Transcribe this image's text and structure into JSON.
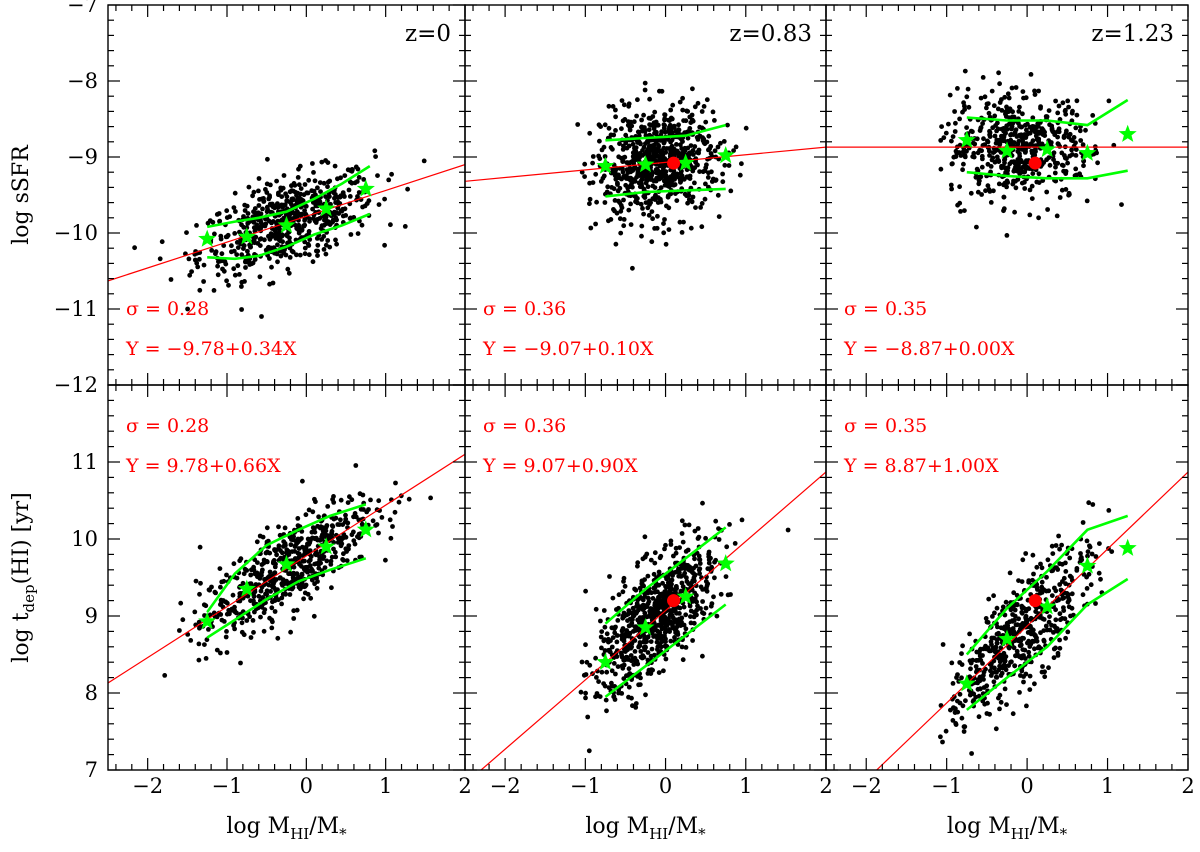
{
  "colors": {
    "points": "#000000",
    "fit_line": "#ff0000",
    "annotation": "#ff0000",
    "median": "#00ff00",
    "percentile": "#00ff00",
    "highlight": "#ff0000"
  },
  "chart_data": [
    {
      "type": "scatter",
      "row": 0,
      "col": 0,
      "label": "z=0",
      "xlim": [
        -2.5,
        2
      ],
      "ylim": [
        -12,
        -7
      ],
      "xticks": [],
      "yticks": [
        -7,
        -8,
        -9,
        -10,
        -11,
        -12
      ],
      "ylabel": "log sSFR",
      "annotations": [
        "σ = 0.28",
        "Y = −9.78+0.34X"
      ],
      "fit": {
        "intercept": -9.78,
        "slope": 0.34
      },
      "cloud": {
        "n": 620,
        "xmu": -0.25,
        "xsd": 0.55,
        "xmin": -2.4,
        "xmax": 1.8,
        "ymin": -12,
        "ymax": -7,
        "sd": 0.28
      },
      "median": {
        "x": [
          -1.25,
          -0.75,
          -0.25,
          0.25,
          0.75
        ],
        "y": [
          -10.08,
          -10.05,
          -9.9,
          -9.68,
          -9.42
        ]
      },
      "lower": {
        "x": [
          -1.25,
          -0.9,
          -0.6,
          -0.25,
          0.1,
          0.45,
          0.8
        ],
        "y": [
          -10.32,
          -10.34,
          -10.3,
          -10.18,
          -10.02,
          -9.9,
          -9.75
        ]
      },
      "upper": {
        "x": [
          -1.25,
          -0.9,
          -0.6,
          -0.25,
          0.1,
          0.45,
          0.8
        ],
        "y": [
          -9.92,
          -9.85,
          -9.8,
          -9.72,
          -9.55,
          -9.35,
          -9.12
        ]
      }
    },
    {
      "type": "scatter",
      "row": 0,
      "col": 1,
      "label": "z=0.83",
      "xlim": [
        -2.5,
        2
      ],
      "ylim": [
        -12,
        -7
      ],
      "xticks": [],
      "yticks": [],
      "annotations": [
        "σ = 0.36",
        "Y = −9.07+0.10X"
      ],
      "fit": {
        "intercept": -9.07,
        "slope": 0.1
      },
      "cloud": {
        "n": 760,
        "xmu": -0.1,
        "xsd": 0.38,
        "xmin": -1.1,
        "xmax": 1.6,
        "ymin": -12,
        "ymax": -7,
        "sd": 0.36
      },
      "median": {
        "x": [
          -0.75,
          -0.25,
          0.25,
          0.75
        ],
        "y": [
          -9.12,
          -9.1,
          -9.08,
          -8.98
        ]
      },
      "lower": {
        "x": [
          -0.75,
          -0.25,
          0.25,
          0.75
        ],
        "y": [
          -9.52,
          -9.46,
          -9.44,
          -9.42
        ]
      },
      "upper": {
        "x": [
          -0.75,
          -0.25,
          0.25,
          0.75
        ],
        "y": [
          -8.78,
          -8.75,
          -8.72,
          -8.58
        ]
      },
      "highlight": {
        "x": [
          0.1
        ],
        "y": [
          -9.08
        ]
      }
    },
    {
      "type": "scatter",
      "row": 0,
      "col": 2,
      "label": "z=1.23",
      "xlim": [
        -2.5,
        2
      ],
      "ylim": [
        -12,
        -7
      ],
      "xticks": [],
      "yticks": [],
      "annotations": [
        "σ = 0.35",
        "Y = −8.87+0.00X"
      ],
      "fit": {
        "intercept": -8.87,
        "slope": 0.0
      },
      "cloud": {
        "n": 560,
        "xmu": -0.1,
        "xsd": 0.45,
        "xmin": -1.1,
        "xmax": 1.6,
        "ymin": -12,
        "ymax": -7,
        "sd": 0.35
      },
      "median": {
        "x": [
          -0.75,
          -0.25,
          0.25,
          0.75,
          1.25
        ],
        "y": [
          -8.78,
          -8.92,
          -8.9,
          -8.95,
          -8.7
        ]
      },
      "lower": {
        "x": [
          -0.75,
          -0.25,
          0.25,
          0.75,
          1.25
        ],
        "y": [
          -9.2,
          -9.25,
          -9.28,
          -9.28,
          -9.18
        ]
      },
      "upper": {
        "x": [
          -0.75,
          -0.25,
          0.25,
          0.75,
          1.25
        ],
        "y": [
          -8.48,
          -8.52,
          -8.52,
          -8.58,
          -8.25
        ]
      },
      "highlight": {
        "x": [
          0.1
        ],
        "y": [
          -9.08
        ]
      }
    },
    {
      "type": "scatter",
      "row": 1,
      "col": 0,
      "label": "",
      "xlim": [
        -2.5,
        2
      ],
      "ylim": [
        7,
        12
      ],
      "xticks": [
        -2,
        -1,
        0,
        1,
        2
      ],
      "yticks": [
        7,
        8,
        9,
        10,
        11
      ],
      "xlabel": "log M",
      "xlabel_sub": "HI",
      "xlabel_tail": "/M",
      "xlabel_sub2": "*",
      "ylabel": "log t",
      "ylabel_sub": "dep",
      "ylabel_tail": "(HI) [yr]",
      "annotations": [
        "σ = 0.28",
        "Y = 9.78+0.66X"
      ],
      "fit": {
        "intercept": 9.78,
        "slope": 0.66
      },
      "cloud": {
        "n": 620,
        "xmu": -0.25,
        "xsd": 0.55,
        "xmin": -2.4,
        "xmax": 1.8,
        "ymin": 7,
        "ymax": 12,
        "sd": 0.28
      },
      "median": {
        "x": [
          -1.25,
          -0.75,
          -0.25,
          0.25,
          0.75
        ],
        "y": [
          8.93,
          9.35,
          9.67,
          9.9,
          10.12
        ]
      },
      "lower": {
        "x": [
          -1.25,
          -0.9,
          -0.5,
          -0.1,
          0.3,
          0.75
        ],
        "y": [
          8.72,
          8.95,
          9.22,
          9.45,
          9.6,
          9.75
        ]
      },
      "upper": {
        "x": [
          -1.25,
          -0.9,
          -0.5,
          -0.1,
          0.3,
          0.75
        ],
        "y": [
          9.05,
          9.55,
          9.92,
          10.12,
          10.3,
          10.45
        ]
      }
    },
    {
      "type": "scatter",
      "row": 1,
      "col": 1,
      "label": "",
      "xlim": [
        -2.5,
        2
      ],
      "ylim": [
        7,
        12
      ],
      "xticks": [
        -2,
        -1,
        0,
        1,
        2
      ],
      "yticks": [],
      "xlabel": "log M",
      "xlabel_sub": "HI",
      "xlabel_tail": "/M",
      "xlabel_sub2": "*",
      "annotations": [
        "σ = 0.36",
        "Y = 9.07+0.90X"
      ],
      "fit": {
        "intercept": 9.07,
        "slope": 0.9
      },
      "cloud": {
        "n": 760,
        "xmu": -0.1,
        "xsd": 0.38,
        "xmin": -1.1,
        "xmax": 1.6,
        "ymin": 7,
        "ymax": 12,
        "sd": 0.36
      },
      "median": {
        "x": [
          -0.75,
          -0.25,
          0.25,
          0.75
        ],
        "y": [
          8.4,
          8.85,
          9.25,
          9.68
        ]
      },
      "lower": {
        "x": [
          -0.75,
          -0.25,
          0.25,
          0.75
        ],
        "y": [
          7.95,
          8.35,
          8.75,
          9.15
        ]
      },
      "upper": {
        "x": [
          -0.75,
          -0.25,
          0.25,
          0.75
        ],
        "y": [
          8.9,
          9.35,
          9.75,
          10.15
        ]
      },
      "highlight": {
        "x": [
          0.1
        ],
        "y": [
          9.2
        ]
      }
    },
    {
      "type": "scatter",
      "row": 1,
      "col": 2,
      "label": "",
      "xlim": [
        -2.5,
        2
      ],
      "ylim": [
        7,
        12
      ],
      "xticks": [
        -2,
        -1,
        0,
        1,
        2
      ],
      "yticks": [],
      "xlabel": "log M",
      "xlabel_sub": "HI",
      "xlabel_tail": "/M",
      "xlabel_sub2": "*",
      "annotations": [
        "σ = 0.35",
        "Y = 8.87+1.00X"
      ],
      "fit": {
        "intercept": 8.87,
        "slope": 1.0
      },
      "cloud": {
        "n": 560,
        "xmu": -0.1,
        "xsd": 0.45,
        "xmin": -1.1,
        "xmax": 1.6,
        "ymin": 7,
        "ymax": 12,
        "sd": 0.35
      },
      "median": {
        "x": [
          -0.75,
          -0.25,
          0.25,
          0.75,
          1.25
        ],
        "y": [
          8.12,
          8.7,
          9.12,
          9.65,
          9.88
        ]
      },
      "lower": {
        "x": [
          -0.75,
          -0.25,
          0.25,
          0.75,
          1.25
        ],
        "y": [
          7.78,
          8.2,
          8.6,
          9.15,
          9.48
        ]
      },
      "upper": {
        "x": [
          -0.75,
          -0.25,
          0.25,
          0.75,
          1.25
        ],
        "y": [
          8.5,
          9.1,
          9.58,
          10.12,
          10.3
        ]
      },
      "highlight": {
        "x": [
          0.1
        ],
        "y": [
          9.2
        ]
      }
    }
  ]
}
